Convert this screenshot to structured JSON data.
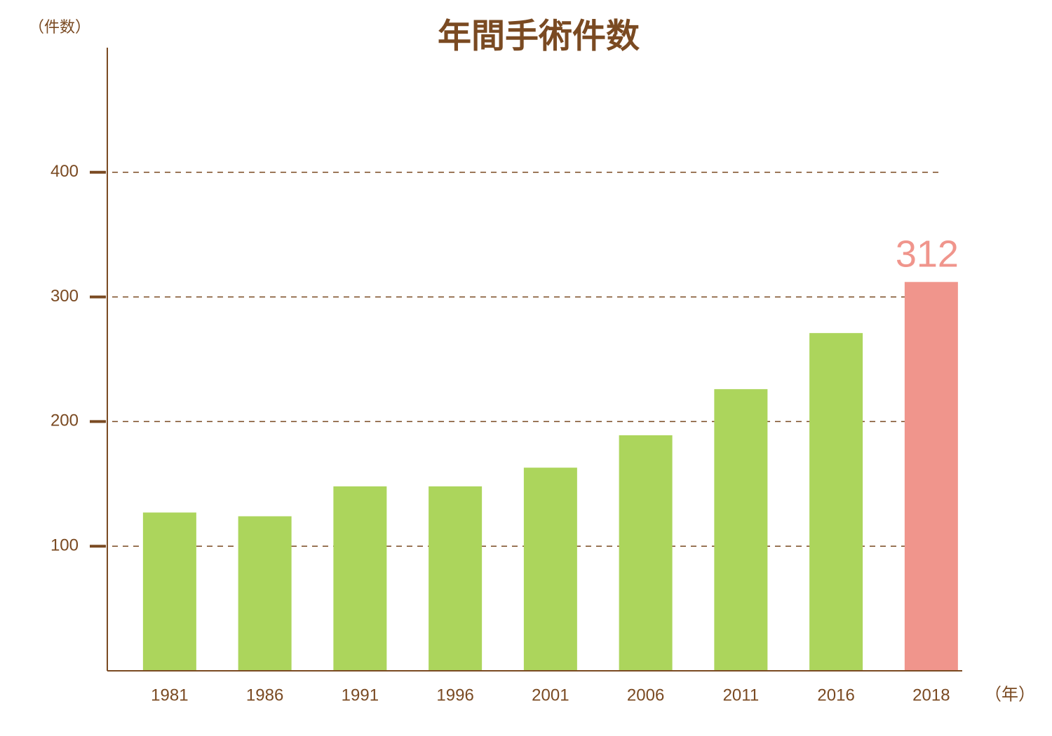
{
  "chart_data": {
    "type": "bar",
    "title": "年間手術件数",
    "y_label": "（件数）",
    "x_label": "（年）",
    "categories": [
      "1981",
      "1986",
      "1991",
      "1996",
      "2001",
      "2006",
      "2011",
      "2016",
      "2018"
    ],
    "values": [
      127,
      124,
      148,
      148,
      163,
      189,
      226,
      271,
      312
    ],
    "colors": [
      "#acd55c",
      "#acd55c",
      "#acd55c",
      "#acd55c",
      "#acd55c",
      "#acd55c",
      "#acd55c",
      "#acd55c",
      "#f0958c"
    ],
    "value_labels": [
      null,
      null,
      null,
      null,
      null,
      null,
      null,
      null,
      "312"
    ],
    "value_label_color": "#f0958c",
    "axis_color": "#7a4a22",
    "ylim": [
      0,
      500
    ],
    "yticks": [
      100,
      200,
      300,
      400
    ],
    "grid": true
  }
}
